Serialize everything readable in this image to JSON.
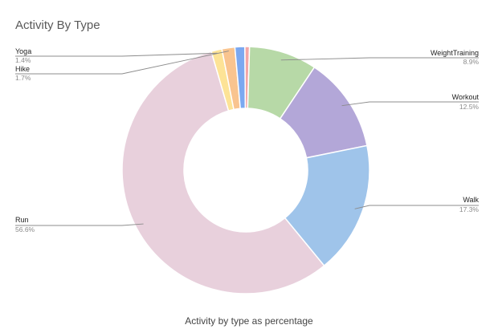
{
  "chart_data": {
    "type": "pie",
    "style": "donut",
    "title": "Activity By Type",
    "subtitle": "Activity by type as percentage",
    "slices": [
      {
        "label": "Run",
        "value": 56.6,
        "display": "56.6%",
        "color": "#e8d0dc"
      },
      {
        "label": "Yoga",
        "value": 1.4,
        "display": "1.4%",
        "color": "#fde396"
      },
      {
        "label": "Hike",
        "value": 1.7,
        "display": "1.7%",
        "color": "#f9c48f"
      },
      {
        "label": "",
        "value": 1.3,
        "display": "",
        "color": "#7ba8f0"
      },
      {
        "label": "",
        "value": 0.6,
        "display": "",
        "color": "#f3a6a6"
      },
      {
        "label": "WeightTraining",
        "value": 8.9,
        "display": "8.9%",
        "color": "#b7d9a7"
      },
      {
        "label": "Workout",
        "value": 12.5,
        "display": "12.5%",
        "color": "#b3a7d8"
      },
      {
        "label": "Walk",
        "value": 17.3,
        "display": "17.3%",
        "color": "#9fc4ea"
      }
    ]
  }
}
